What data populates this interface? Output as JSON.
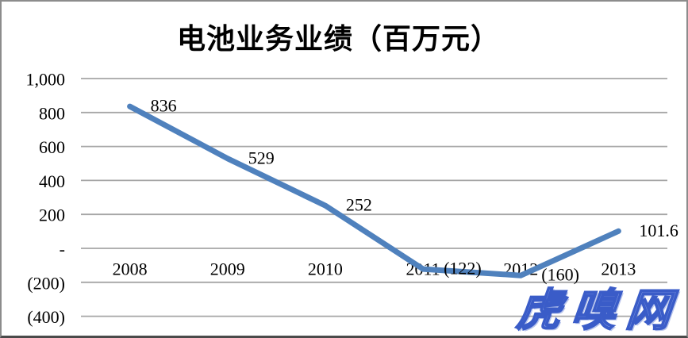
{
  "header": {
    "title": "电池业务业绩（百万元）"
  },
  "watermark": {
    "text": "虎嗅网"
  },
  "colors": {
    "line": "#4F81BD",
    "gridline": "#A6A6A6",
    "label_text": "#000000",
    "watermark_fill": "#92A8E6",
    "watermark_stroke": "#3A5CC8"
  },
  "chart_data": {
    "type": "line",
    "title": "电池业务业绩（百万元）",
    "categories": [
      "2008",
      "2009",
      "2010",
      "2011",
      "2012",
      "2013"
    ],
    "values": [
      836,
      529,
      252,
      -122,
      -160,
      101.6
    ],
    "point_labels": [
      "836",
      "529",
      "252",
      "(122)",
      "(160)",
      "101.6"
    ],
    "y_ticks": [
      {
        "value": 1000,
        "label": "1,000"
      },
      {
        "value": 800,
        "label": "800"
      },
      {
        "value": 600,
        "label": "600"
      },
      {
        "value": 400,
        "label": "400"
      },
      {
        "value": 200,
        "label": "200"
      },
      {
        "value": 0,
        "label": "-"
      },
      {
        "value": -200,
        "label": "(200)"
      },
      {
        "value": -400,
        "label": "(400)"
      }
    ],
    "ylim": [
      -400,
      1000
    ],
    "xlabel": "",
    "ylabel": "",
    "grid": true,
    "legend_position": "none"
  }
}
